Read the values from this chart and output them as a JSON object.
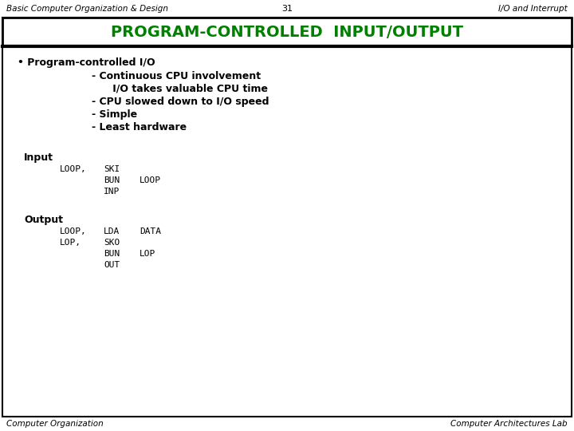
{
  "top_left": "Basic Computer Organization & Design",
  "top_center": "31",
  "top_right": "I/O and Interrupt",
  "title": "PROGRAM-CONTROLLED  INPUT/OUTPUT",
  "title_color": "#008000",
  "bullet_main": "• Program-controlled I/O",
  "bullet_lines": [
    "- Continuous CPU involvement",
    "      I/O takes valuable CPU time",
    "- CPU slowed down to I/O speed",
    "- Simple",
    "- Least hardware"
  ],
  "input_label": "Input",
  "input_code_col1": [
    "LOOP,",
    "",
    ""
  ],
  "input_code_col2": [
    "SKI",
    "BUN",
    "INP"
  ],
  "input_code_col3": [
    "",
    "LOOP",
    ""
  ],
  "output_label": "Output",
  "output_code_col1": [
    "LOOP,",
    "LOP,",
    "",
    ""
  ],
  "output_code_col2": [
    "LDA",
    "SKO",
    "BUN",
    "OUT"
  ],
  "output_code_col3": [
    "DATA",
    "",
    "LOP",
    ""
  ],
  "bottom_left": "Computer Organization",
  "bottom_right": "Computer Architectures Lab",
  "bg_color": "#ffffff"
}
